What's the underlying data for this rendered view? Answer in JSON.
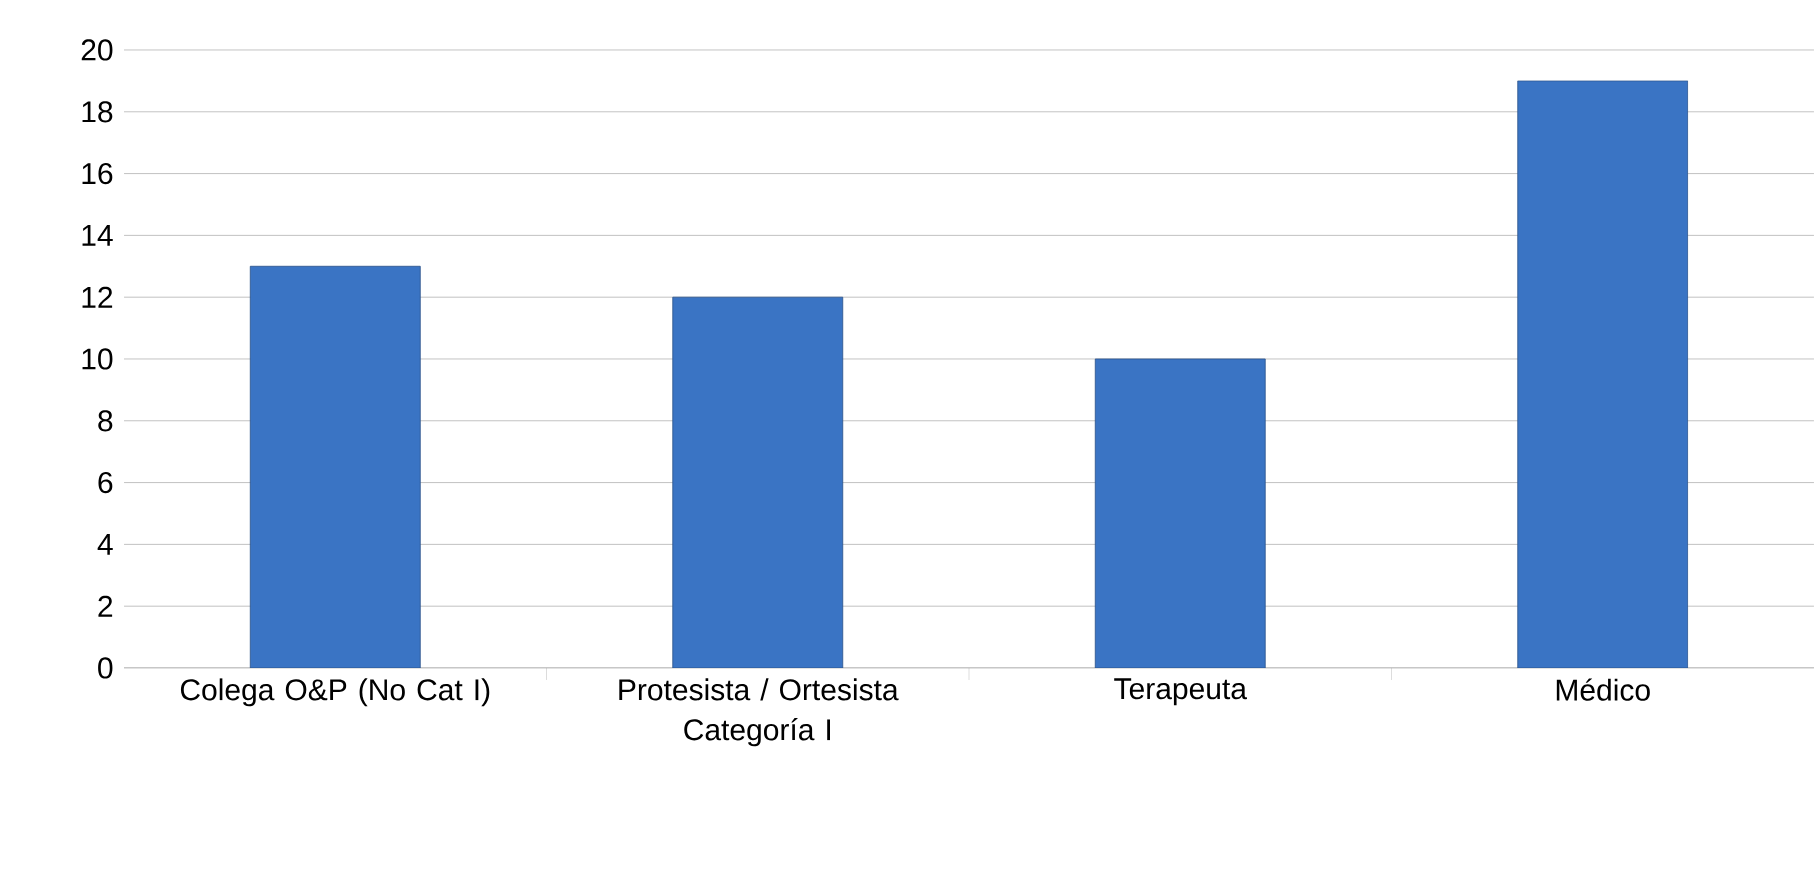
{
  "chart_data": {
    "type": "bar",
    "categories": [
      "Colega O&P (No Cat I)",
      "Protesista / Ortesista Categoría I",
      "Terapeuta",
      "Médico"
    ],
    "values": [
      13,
      12,
      10,
      19
    ],
    "color": "#3a74c4",
    "ylim": [
      0,
      20
    ],
    "yticks": [
      0,
      2,
      4,
      6,
      8,
      10,
      12,
      14,
      16,
      18,
      20
    ],
    "grid": "y"
  }
}
